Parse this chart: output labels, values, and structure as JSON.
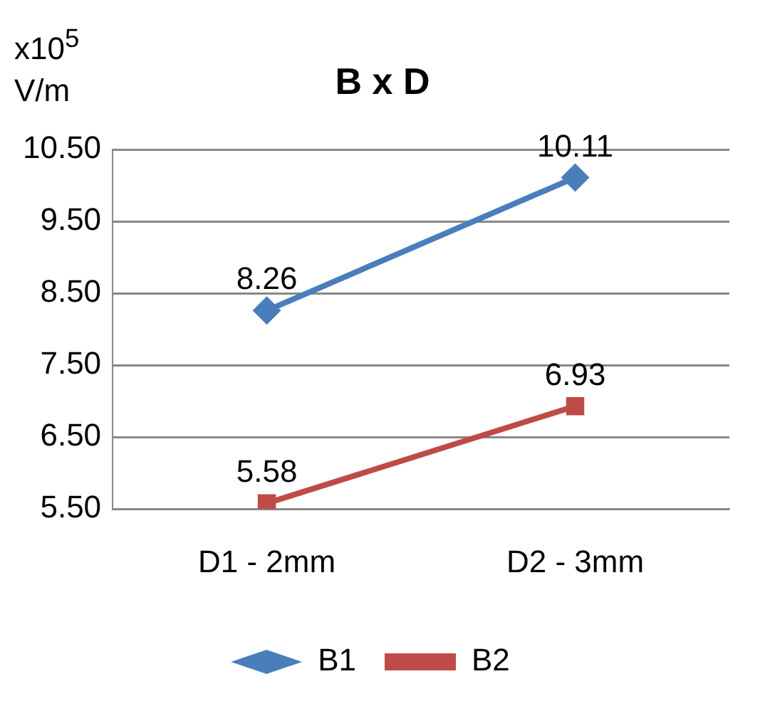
{
  "chart_data": {
    "type": "line",
    "title": "B x D",
    "ylabel": "x10$^{5}$ V/m",
    "categories": [
      "D1 - 2mm",
      "D2 - 3mm"
    ],
    "series": [
      {
        "name": "B1",
        "color": "#4a7ebb",
        "values": [
          8.26,
          10.11
        ],
        "marker": "diamond"
      },
      {
        "name": "B2",
        "color": "#be4b48",
        "values": [
          5.58,
          6.93
        ],
        "marker": "square"
      }
    ],
    "ylim": [
      5.5,
      10.5
    ],
    "yticks": [
      {
        "value": 5.5,
        "label": "5.50"
      },
      {
        "value": 6.5,
        "label": "6.50"
      },
      {
        "value": 7.5,
        "label": "7.50"
      },
      {
        "value": 8.5,
        "label": "8.50"
      },
      {
        "value": 9.5,
        "label": "9.50"
      },
      {
        "value": 10.5,
        "label": "10.50"
      }
    ],
    "grid": "y",
    "legend": "bottom",
    "data_labels": true,
    "line_style": "solid"
  }
}
